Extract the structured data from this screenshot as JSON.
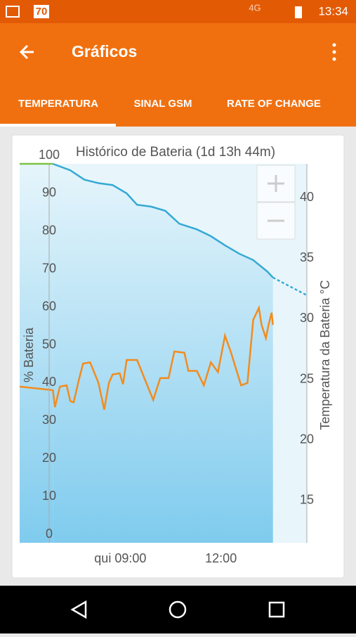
{
  "status_bar": {
    "notification": "70",
    "network": "4G",
    "time": "13:34"
  },
  "app_bar": {
    "title": "Gráficos"
  },
  "tabs": [
    "TEMPERATURA",
    "SINAL GSM",
    "RATE OF CHANGE"
  ],
  "chart_data": {
    "type": "line",
    "title": "Histórico de Bateria (1d 13h 44m)",
    "y_label": "% Bateria",
    "y2_label": "Temperatura da Bateria °C",
    "xlim": [
      6.0,
      14.56
    ],
    "xticks": [
      {
        "value": 9,
        "label": "qui 09:00"
      },
      {
        "value": 12,
        "label": "12:00"
      }
    ],
    "ylim": [
      0,
      100
    ],
    "yticks": [
      0,
      10,
      20,
      30,
      40,
      50,
      60,
      70,
      80,
      90,
      100
    ],
    "y2lim": [
      11.5,
      42.8
    ],
    "y2ticks": [
      15,
      20,
      25,
      30,
      35,
      40
    ],
    "series": [
      {
        "color": "#7cc242",
        "x": [
          6.0,
          6.99
        ],
        "values": [
          100,
          100
        ]
      },
      {
        "color": "#35a9d5",
        "area": true,
        "x": [
          6.99,
          7.51,
          7.93,
          8.35,
          8.77,
          9.19,
          9.5,
          9.92,
          10.34,
          10.76,
          11.28,
          11.7,
          12.12,
          12.54,
          12.96,
          13.38,
          13.55
        ],
        "values": [
          100,
          98.3,
          95.8,
          94.9,
          94.4,
          92.2,
          89.2,
          88.7,
          87.6,
          84.2,
          82.7,
          80.9,
          78.5,
          76.3,
          74.6,
          71.6,
          70
        ]
      },
      {
        "color": "#35a9d5",
        "dashed": true,
        "x": [
          13.55,
          14.56
        ],
        "values": [
          70,
          65.3
        ]
      },
      {
        "color": "#f28c1e",
        "axis": "y2",
        "x": [
          6.0,
          6.67,
          6.99,
          7.05,
          7.2,
          7.4,
          7.51,
          7.61,
          7.76,
          7.89,
          8.1,
          8.35,
          8.52,
          8.66,
          8.77,
          8.98,
          9.08,
          9.19,
          9.5,
          9.82,
          9.98,
          10.19,
          10.44,
          10.61,
          10.91,
          11.03,
          11.28,
          11.49,
          11.7,
          11.91,
          12.12,
          12.29,
          12.6,
          12.79,
          12.96,
          13.13,
          13.21,
          13.34,
          13.42,
          13.51,
          13.55
        ],
        "values": [
          24.4,
          24.2,
          24.1,
          22.7,
          24.4,
          24.5,
          23.2,
          23.1,
          24.9,
          26.3,
          26.4,
          24.7,
          22.5,
          24.7,
          25.4,
          25.5,
          24.6,
          26.6,
          26.6,
          24.4,
          23.3,
          25.1,
          25.1,
          27.3,
          27.2,
          25.7,
          25.7,
          24.5,
          26.4,
          25.6,
          28.6,
          27.3,
          24.5,
          24.7,
          29.9,
          30.9,
          29.5,
          28.4,
          29.5,
          30.5,
          29.5
        ]
      }
    ]
  }
}
